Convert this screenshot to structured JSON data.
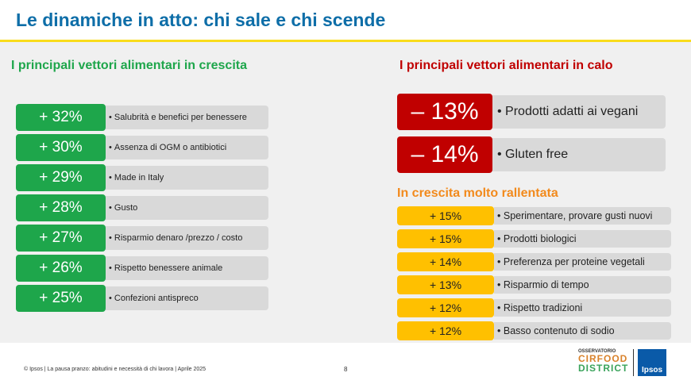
{
  "title": "Le dinamiche in atto: chi sale e chi scende",
  "growth": {
    "heading": "I principali vettori alimentari  in crescita",
    "color": "#1ea64b",
    "items": [
      {
        "value": "+ 32%",
        "label": "Salubrità e benefici per benessere"
      },
      {
        "value": "+ 30%",
        "label": "Assenza di OGM o antibiotici"
      },
      {
        "value": "+ 29%",
        "label": "Made in Italy"
      },
      {
        "value": "+ 28%",
        "label": "Gusto"
      },
      {
        "value": "+ 27%",
        "label": "Risparmio denaro /prezzo / costo"
      },
      {
        "value": "+ 26%",
        "label": "Rispetto benessere animale"
      },
      {
        "value": "+ 25%",
        "label": "Confezioni antispreco"
      }
    ]
  },
  "decline": {
    "heading": "I principali vettori alimentari  in calo",
    "color": "#c00000",
    "items": [
      {
        "value": "– 13%",
        "label": "Prodotti adatti ai vegani"
      },
      {
        "value": "– 14%",
        "label": "Gluten free"
      }
    ]
  },
  "slow": {
    "heading": "In crescita molto rallentata",
    "color": "#ffc000",
    "items": [
      {
        "value": "+ 15%",
        "label": "Sperimentare, provare gusti nuovi"
      },
      {
        "value": "+ 15%",
        "label": "Prodotti biologici"
      },
      {
        "value": "+ 14%",
        "label": "Preferenza per proteine vegetali"
      },
      {
        "value": "+ 13%",
        "label": "Risparmio di tempo"
      },
      {
        "value": "+ 12%",
        "label": " Rispetto tradizioni"
      },
      {
        "value": "+ 12%",
        "label": " Basso contenuto di sodio"
      }
    ]
  },
  "footer": {
    "text": "© Ipsos | La pausa pranzo: abitudini e necessità di chi lavora | Aprile 2025",
    "page": "8"
  },
  "logos": {
    "osservatorio": "OSSERVATORIO",
    "cirfood": "CIRFOOD",
    "district": "DISTRICT",
    "ipsos": "Ipsos"
  }
}
